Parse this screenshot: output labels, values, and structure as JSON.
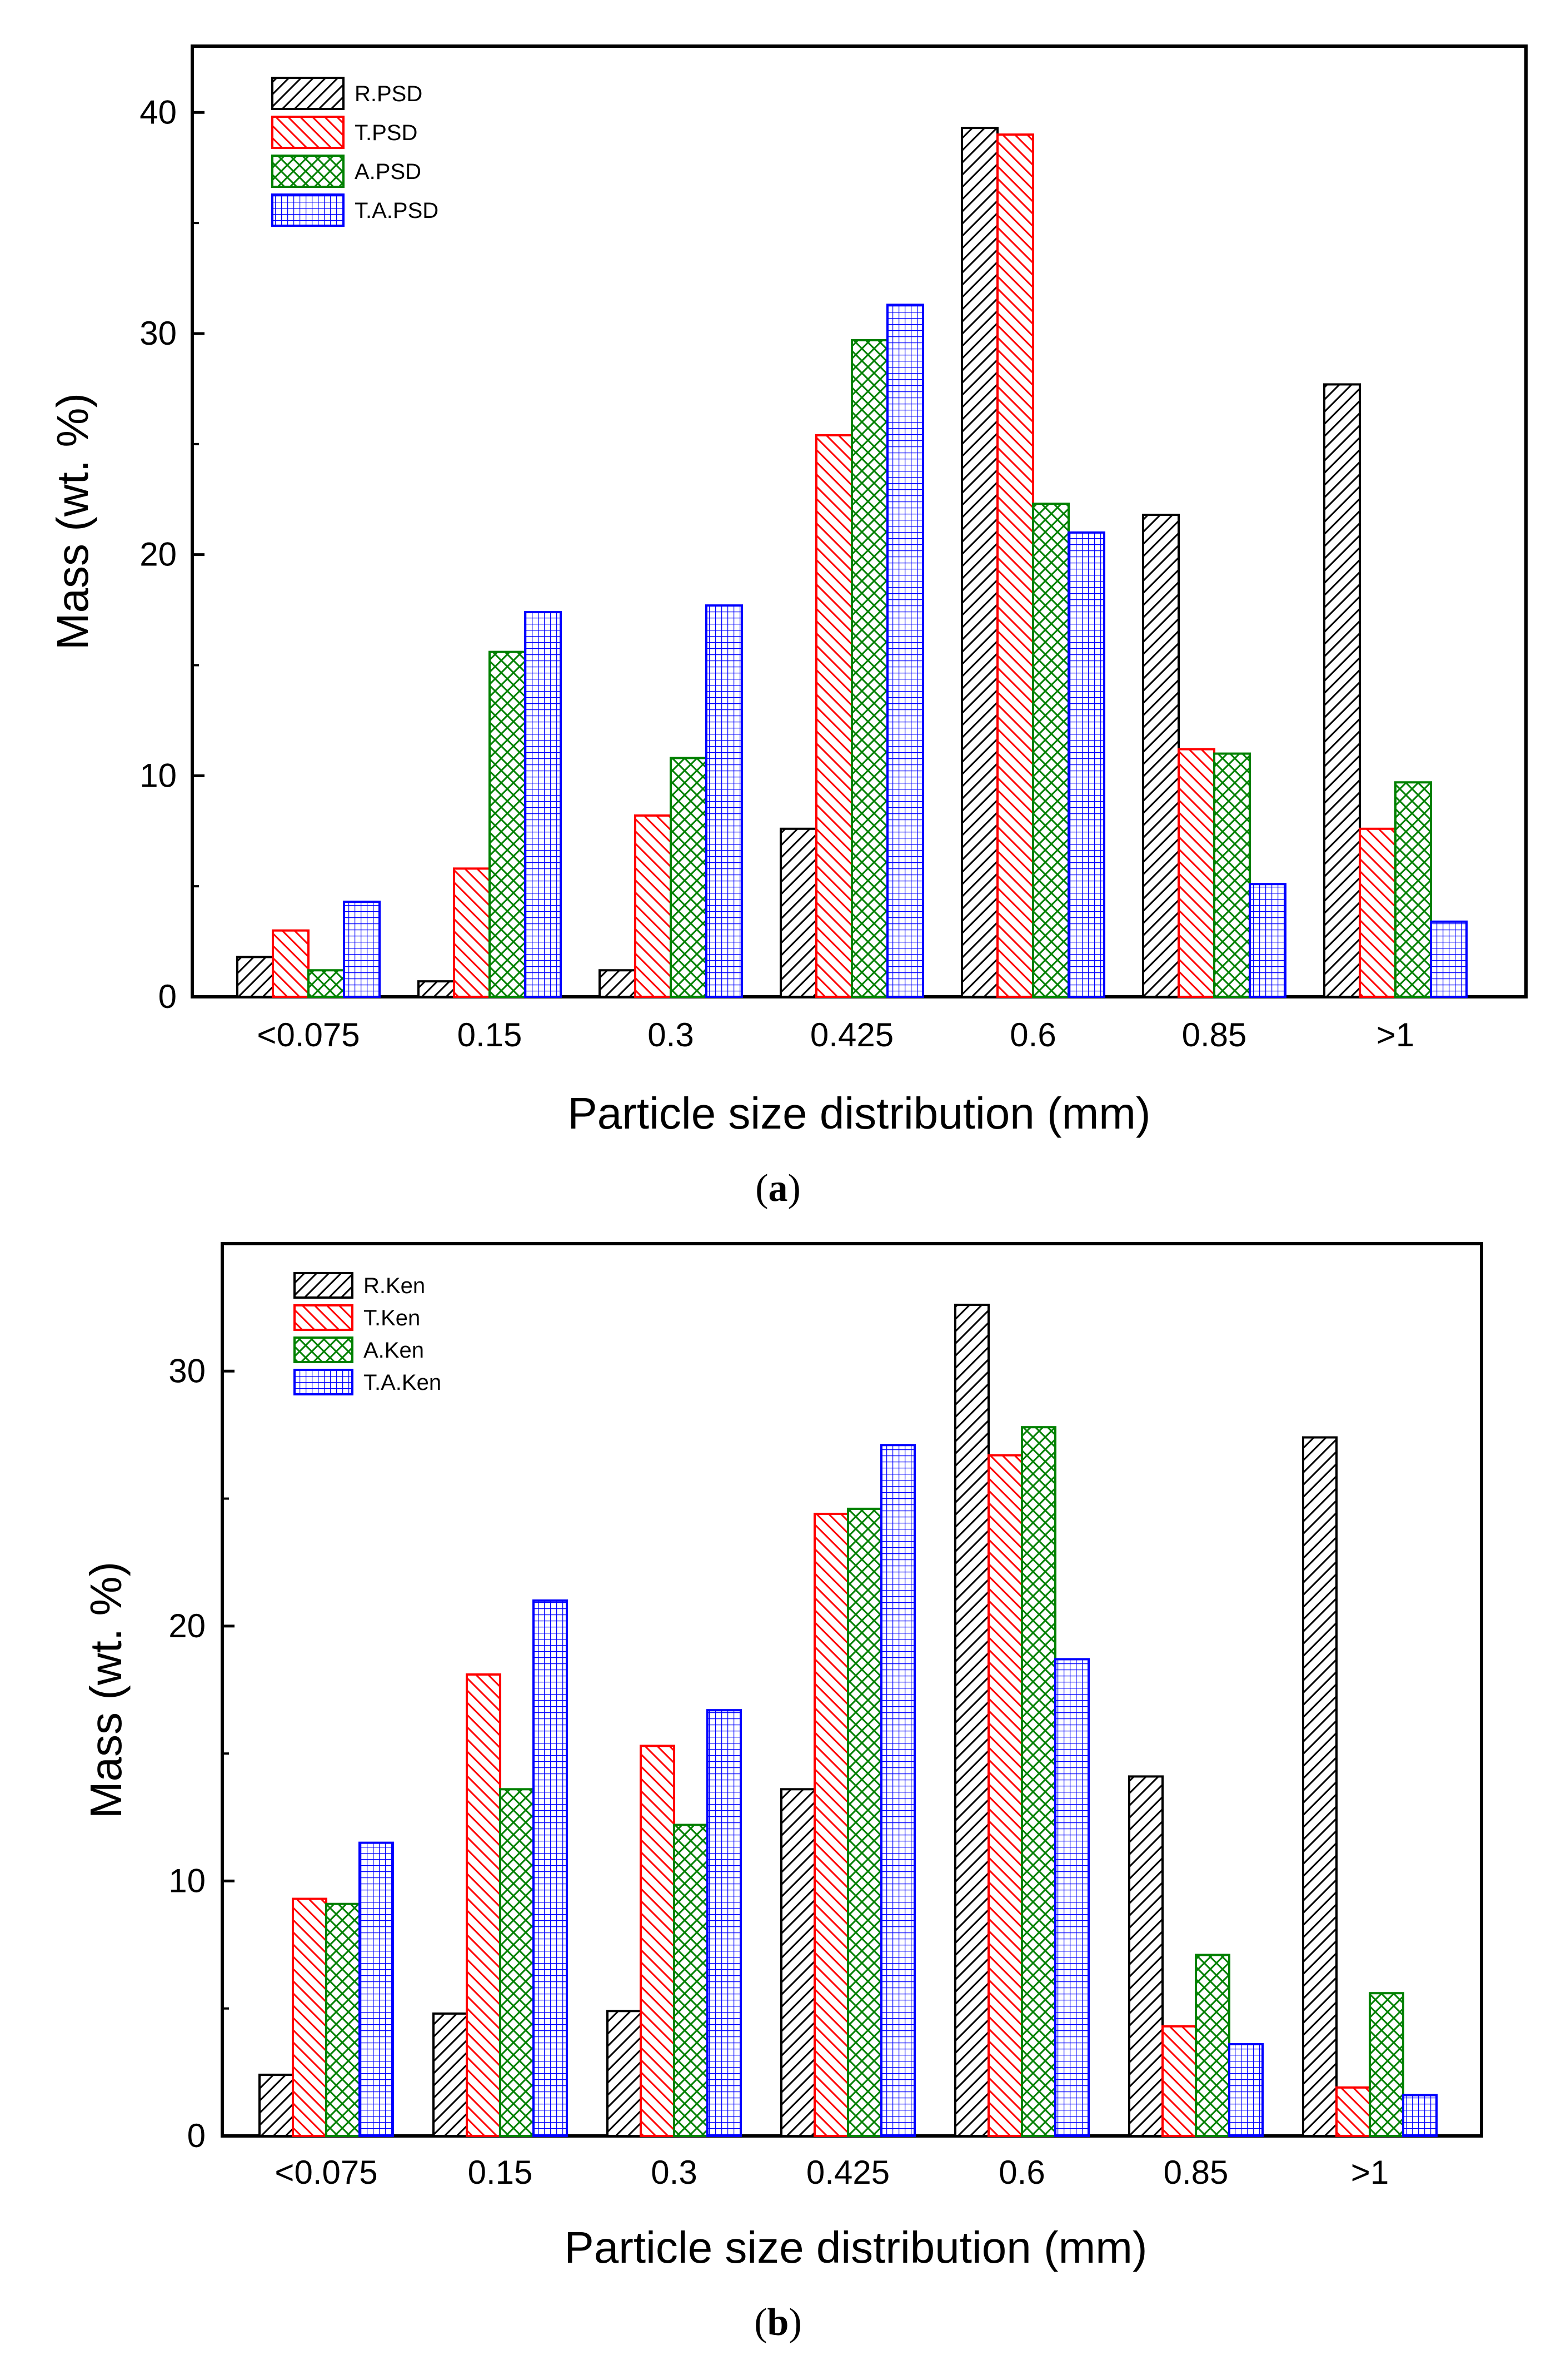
{
  "colors": {
    "black": "#000000",
    "red": "#ff0000",
    "green": "#008000",
    "blue": "#0000ff",
    "background": "#ffffff"
  },
  "chart_data": [
    {
      "type": "bar",
      "panel_label": "a",
      "xlabel": "Particle size distribution (mm)",
      "ylabel": "Mass (wt. %)",
      "ylim": [
        0,
        43
      ],
      "yticks": [
        0,
        10,
        20,
        30,
        40
      ],
      "categories": [
        "<0.075",
        "0.15",
        "0.3",
        "0.425",
        "0.6",
        "0.85",
        ">1"
      ],
      "legend_position": "top-left",
      "series": [
        {
          "name": "R.PSD",
          "color": "#000000",
          "pattern": "hatch-forward",
          "values": [
            1.8,
            0.7,
            1.2,
            7.6,
            39.3,
            21.8,
            27.7
          ]
        },
        {
          "name": "T.PSD",
          "color": "#ff0000",
          "pattern": "hatch-back",
          "values": [
            3.0,
            5.8,
            8.2,
            25.4,
            39.0,
            11.2,
            7.6
          ]
        },
        {
          "name": "A.PSD",
          "color": "#008000",
          "pattern": "crosshatch",
          "values": [
            1.2,
            15.6,
            10.8,
            29.7,
            22.3,
            11.0,
            9.7
          ]
        },
        {
          "name": "T.A.PSD",
          "color": "#0000ff",
          "pattern": "grid",
          "values": [
            4.3,
            17.4,
            17.7,
            31.3,
            21.0,
            5.1,
            3.4
          ]
        }
      ]
    },
    {
      "type": "bar",
      "panel_label": "b",
      "xlabel": "Particle size distribution (mm)",
      "ylabel": "Mass (wt. %)",
      "ylim": [
        0,
        35
      ],
      "yticks": [
        0,
        10,
        20,
        30
      ],
      "categories": [
        "<0.075",
        "0.15",
        "0.3",
        "0.425",
        "0.6",
        "0.85",
        ">1"
      ],
      "legend_position": "top-left",
      "series": [
        {
          "name": "R.Ken",
          "color": "#000000",
          "pattern": "hatch-forward",
          "values": [
            2.4,
            4.8,
            4.9,
            13.6,
            32.6,
            14.1,
            27.4
          ]
        },
        {
          "name": "T.Ken",
          "color": "#ff0000",
          "pattern": "hatch-back",
          "values": [
            9.3,
            18.1,
            15.3,
            24.4,
            26.7,
            4.3,
            1.9
          ]
        },
        {
          "name": "A.Ken",
          "color": "#008000",
          "pattern": "crosshatch",
          "values": [
            9.1,
            13.6,
            12.2,
            24.6,
            27.8,
            7.1,
            5.6
          ]
        },
        {
          "name": "T.A.Ken",
          "color": "#0000ff",
          "pattern": "grid",
          "values": [
            11.5,
            21.0,
            16.7,
            27.1,
            18.7,
            3.6,
            1.6
          ]
        }
      ]
    }
  ]
}
